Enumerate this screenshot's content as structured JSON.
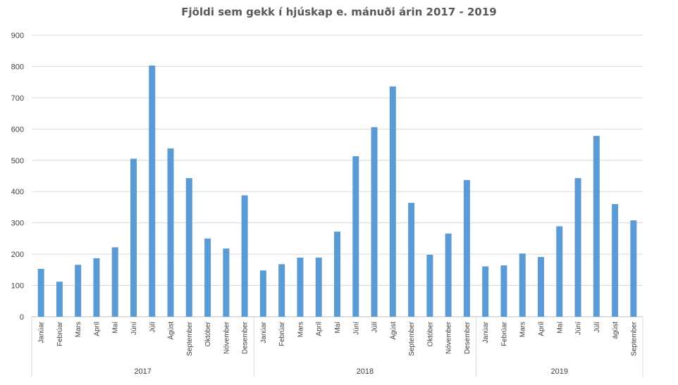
{
  "chart_data": {
    "type": "bar",
    "title": "Fjöldi sem gekk í hjúskap e. mánuði árin 2017 - 2019",
    "xlabel": "",
    "ylabel": "",
    "ylim": [
      0,
      900
    ],
    "yticks": [
      0,
      100,
      200,
      300,
      400,
      500,
      600,
      700,
      800,
      900
    ],
    "grid": true,
    "color": "#5B9BD5",
    "groups": [
      {
        "name": "2017",
        "categories": [
          "Janúar",
          "Febrúar",
          "Mars",
          "Apríl",
          "Maí",
          "Júní",
          "Júlí",
          "Ágúst",
          "September",
          "Október",
          "Nóvember",
          "Desember"
        ],
        "values": [
          153,
          112,
          166,
          187,
          222,
          505,
          803,
          538,
          443,
          250,
          218,
          388
        ]
      },
      {
        "name": "2018",
        "categories": [
          "Janúar",
          "Febrúar",
          "Mars",
          "Apríl",
          "Maí",
          "Júní",
          "Júlí",
          "Ágúst",
          "September",
          "Október",
          "Nóvember",
          "Desember"
        ],
        "values": [
          148,
          168,
          189,
          189,
          272,
          513,
          606,
          736,
          364,
          198,
          266,
          437
        ]
      },
      {
        "name": "2019",
        "categories": [
          "Janúar",
          "Febrúar",
          "Mars",
          "Apríl",
          "Maí",
          "Júní",
          "Júlí",
          "ágúst",
          "September"
        ],
        "values": [
          161,
          164,
          202,
          191,
          289,
          443,
          578,
          360,
          308
        ]
      }
    ]
  }
}
